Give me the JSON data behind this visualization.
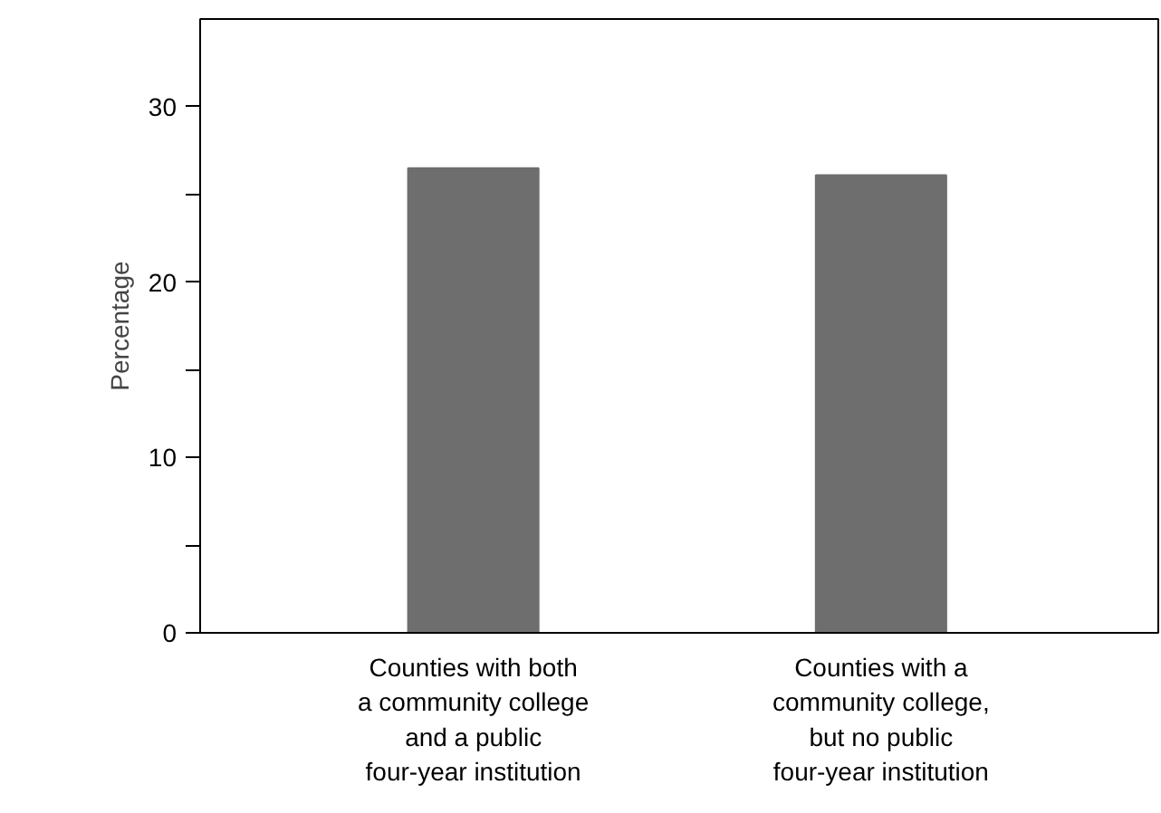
{
  "chart_data": {
    "type": "bar",
    "ylabel": "Percentage",
    "categories": [
      "Counties with both\na community college\nand a public\nfour-year institution",
      "Counties with a\ncommunity college,\nbut no public\nfour-year institution"
    ],
    "values": [
      26.5,
      26.1
    ],
    "color": "#6e6e6e",
    "ylim": [
      0,
      35
    ],
    "yticks": [
      0,
      {
        "value": 5,
        "label": null
      },
      10,
      {
        "value": 15,
        "label": null
      },
      20,
      {
        "value": 25,
        "label": null
      },
      30
    ],
    "grid": false
  }
}
